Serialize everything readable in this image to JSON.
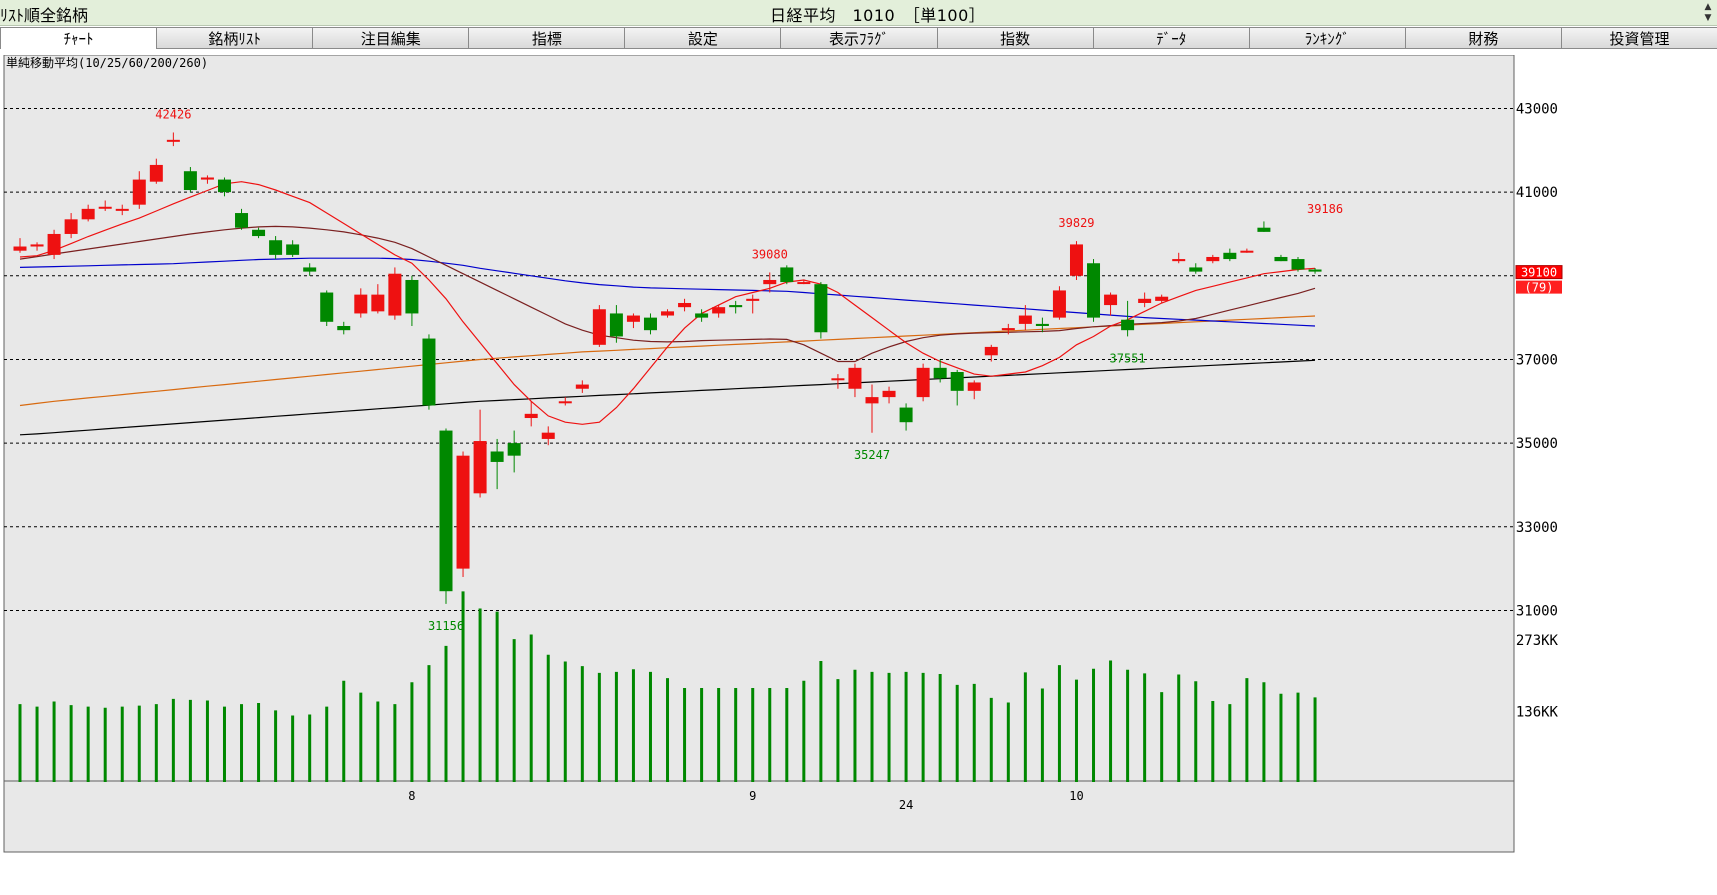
{
  "header": {
    "list_title": "ﾘｽﾄ順全銘柄",
    "stock_title": "日経平均　1010　［単100］",
    "scroll_up_icon": "triangle-up-icon",
    "scroll_down_icon": "triangle-down-icon"
  },
  "tabs": [
    {
      "label": "ﾁｬｰﾄ",
      "active": true
    },
    {
      "label": "銘柄ﾘｽﾄ"
    },
    {
      "label": "注目編集"
    },
    {
      "label": "指標"
    },
    {
      "label": "設定"
    },
    {
      "label": "表示ﾌﾗｸﾞ"
    },
    {
      "label": "指数"
    },
    {
      "label": "ﾃﾞｰﾀ"
    },
    {
      "label": "ﾗﾝｷﾝｸﾞ"
    },
    {
      "label": "財務"
    },
    {
      "label": "投資管理"
    }
  ],
  "colors": {
    "up": "#ee1111",
    "down": "#008800",
    "volume": "#008800",
    "ma10": "#ee1111",
    "ma25": "#7a2020",
    "ma60": "#0000cc",
    "ma200": "#d86a10",
    "ma260": "#000000",
    "background": "#e8e8e8",
    "grid": "#000000"
  },
  "chart_data": {
    "type": "candlestick",
    "indicator_label": "単純移動平均(10/25/60/200/260)",
    "y_ticks": [
      31000,
      33000,
      35000,
      37000,
      39000,
      41000,
      43000
    ],
    "y_tick_labels": [
      "31000",
      "33000",
      "35000",
      "37000",
      "",
      "41000",
      "43000"
    ],
    "ylim": [
      30700,
      43800
    ],
    "x_labels": [
      {
        "index": 23,
        "text": "8"
      },
      {
        "index": 43,
        "text": "9"
      },
      {
        "index": 52,
        "text": "24"
      },
      {
        "index": 62,
        "text": "10"
      }
    ],
    "last_price_label": "39100",
    "last_change_label": "(79)",
    "candles": [
      [
        39600,
        39900,
        39550,
        39700
      ],
      [
        39700,
        39800,
        39600,
        39750
      ],
      [
        39500,
        40100,
        39400,
        40000
      ],
      [
        40000,
        40500,
        39900,
        40350
      ],
      [
        40350,
        40700,
        40300,
        40600
      ],
      [
        40650,
        40800,
        40550,
        40650
      ],
      [
        40600,
        40700,
        40450,
        40600
      ],
      [
        40700,
        41500,
        40600,
        41300
      ],
      [
        41250,
        41800,
        41200,
        41650
      ],
      [
        42250,
        42426,
        42100,
        42250
      ],
      [
        41500,
        41600,
        41000,
        41050
      ],
      [
        41300,
        41400,
        41200,
        41350
      ],
      [
        41300,
        41350,
        40900,
        41000
      ],
      [
        40500,
        40600,
        40100,
        40150
      ],
      [
        40100,
        40150,
        39900,
        39950
      ],
      [
        39850,
        39950,
        39400,
        39500
      ],
      [
        39750,
        39850,
        39450,
        39500
      ],
      [
        39200,
        39300,
        39000,
        39100
      ],
      [
        38600,
        38650,
        37800,
        37900
      ],
      [
        37800,
        37900,
        37600,
        37700
      ],
      [
        38100,
        38700,
        38000,
        38550
      ],
      [
        38150,
        38800,
        38100,
        38550
      ],
      [
        38050,
        39200,
        37950,
        39050
      ],
      [
        38900,
        39000,
        37800,
        38100
      ],
      [
        37500,
        37600,
        35800,
        35900
      ],
      [
        35300,
        35350,
        31156,
        31460
      ],
      [
        32000,
        34800,
        31800,
        34700
      ],
      [
        33800,
        35800,
        33700,
        35050
      ],
      [
        34800,
        35100,
        33900,
        34550
      ],
      [
        35000,
        35300,
        34300,
        34700
      ],
      [
        35600,
        36000,
        35400,
        35700
      ],
      [
        35100,
        35400,
        34950,
        35250
      ],
      [
        36000,
        36100,
        35900,
        36000
      ],
      [
        36300,
        36500,
        36200,
        36400
      ],
      [
        37350,
        38300,
        37300,
        38200
      ],
      [
        38100,
        38300,
        37400,
        37550
      ],
      [
        37900,
        38100,
        37750,
        38050
      ],
      [
        38000,
        38100,
        37600,
        37700
      ],
      [
        38050,
        38200,
        38000,
        38150
      ],
      [
        38250,
        38450,
        38150,
        38350
      ],
      [
        38100,
        38200,
        37900,
        38000
      ],
      [
        38100,
        38300,
        38000,
        38250
      ],
      [
        38300,
        38400,
        38100,
        38250
      ],
      [
        38400,
        38550,
        38100,
        38450
      ],
      [
        38800,
        39080,
        38600,
        38900
      ],
      [
        39200,
        39250,
        38800,
        38850
      ],
      [
        38850,
        38900,
        38800,
        38850
      ],
      [
        38800,
        38850,
        37500,
        37650
      ],
      [
        36550,
        36650,
        36300,
        36550
      ],
      [
        36300,
        36900,
        36100,
        36800
      ],
      [
        35950,
        36400,
        35247,
        36100
      ],
      [
        36100,
        36350,
        35950,
        36250
      ],
      [
        35850,
        35950,
        35300,
        35500
      ],
      [
        36100,
        36900,
        36000,
        36800
      ],
      [
        36800,
        37000,
        36450,
        36550
      ],
      [
        36700,
        36750,
        35900,
        36250
      ],
      [
        36250,
        36500,
        36050,
        36450
      ],
      [
        37100,
        37350,
        36950,
        37300
      ],
      [
        37700,
        37850,
        37600,
        37750
      ],
      [
        37850,
        38300,
        37700,
        38050
      ],
      [
        37850,
        38000,
        37650,
        37800
      ],
      [
        38000,
        38750,
        37950,
        38650
      ],
      [
        39000,
        39829,
        38900,
        39750
      ],
      [
        39300,
        39400,
        37900,
        38000
      ],
      [
        38300,
        38600,
        38050,
        38550
      ],
      [
        37950,
        38400,
        37551,
        37700
      ],
      [
        38350,
        38600,
        38250,
        38450
      ],
      [
        38400,
        38550,
        38350,
        38500
      ],
      [
        39350,
        39550,
        39300,
        39400
      ],
      [
        39200,
        39300,
        39050,
        39100
      ],
      [
        39350,
        39500,
        39300,
        39450
      ],
      [
        39550,
        39650,
        39350,
        39400
      ],
      [
        39600,
        39650,
        39550,
        39600
      ],
      [
        40150,
        40300,
        40050,
        40050
      ],
      [
        39450,
        39500,
        39350,
        39350
      ],
      [
        39400,
        39450,
        39100,
        39150
      ],
      [
        39150,
        39186,
        39050,
        39100
      ]
    ],
    "high_annotations": [
      {
        "index": 9,
        "text": "42426"
      },
      {
        "index": 44,
        "text": "39080"
      },
      {
        "index": 62,
        "text": "39829"
      },
      {
        "index": 76,
        "text": "39186"
      }
    ],
    "low_annotations": [
      {
        "index": 25,
        "text": "31156"
      },
      {
        "index": 50,
        "text": "35247"
      },
      {
        "index": 65,
        "text": "37551"
      }
    ],
    "ma10": [
      39450,
      39480,
      39610,
      39770,
      39940,
      40090,
      40240,
      40380,
      40550,
      40720,
      40880,
      41040,
      41200,
      41250,
      41180,
      41050,
      40900,
      40750,
      40500,
      40250,
      40000,
      39750,
      39500,
      39300,
      38900,
      38450,
      37900,
      37400,
      36900,
      36400,
      36000,
      35650,
      35500,
      35450,
      35500,
      35850,
      36300,
      36800,
      37300,
      37750,
      38100,
      38300,
      38500,
      38600,
      38700,
      38850,
      38900,
      38800,
      38600,
      38300,
      38000,
      37700,
      37400,
      37150,
      36950,
      36800,
      36650,
      36600,
      36650,
      36700,
      36850,
      37050,
      37350,
      37550,
      37800,
      37950,
      38150,
      38350,
      38500,
      38650,
      38750,
      38850,
      38950,
      39050,
      39100,
      39150,
      39180
    ],
    "ma25": [
      39400,
      39460,
      39520,
      39580,
      39640,
      39700,
      39760,
      39820,
      39880,
      39940,
      40000,
      40050,
      40100,
      40140,
      40170,
      40180,
      40170,
      40140,
      40100,
      40050,
      39980,
      39900,
      39800,
      39650,
      39450,
      39250,
      39050,
      38850,
      38650,
      38450,
      38250,
      38050,
      37850,
      37700,
      37580,
      37520,
      37460,
      37430,
      37420,
      37430,
      37450,
      37460,
      37470,
      37480,
      37490,
      37480,
      37350,
      37150,
      36950,
      36950,
      37150,
      37300,
      37430,
      37520,
      37580,
      37610,
      37630,
      37640,
      37650,
      37660,
      37670,
      37690,
      37740,
      37780,
      37810,
      37840,
      37860,
      37880,
      37920,
      37980,
      38080,
      38180,
      38280,
      38380,
      38480,
      38580,
      38700
    ],
    "ma60": [
      39200,
      39210,
      39220,
      39230,
      39240,
      39250,
      39260,
      39270,
      39280,
      39290,
      39310,
      39330,
      39350,
      39370,
      39390,
      39400,
      39410,
      39420,
      39420,
      39420,
      39420,
      39420,
      39410,
      39390,
      39350,
      39300,
      39250,
      39180,
      39120,
      39060,
      39000,
      38940,
      38880,
      38830,
      38790,
      38760,
      38730,
      38710,
      38700,
      38690,
      38680,
      38670,
      38660,
      38650,
      38640,
      38630,
      38600,
      38570,
      38540,
      38510,
      38480,
      38450,
      38420,
      38390,
      38360,
      38330,
      38300,
      38270,
      38240,
      38210,
      38180,
      38150,
      38120,
      38090,
      38060,
      38030,
      38000,
      37980,
      37960,
      37940,
      37920,
      37900,
      37880,
      37860,
      37840,
      37820,
      37800
    ],
    "ma200": [
      35900,
      35950,
      36000,
      36040,
      36080,
      36120,
      36160,
      36200,
      36240,
      36280,
      36320,
      36360,
      36400,
      36440,
      36480,
      36520,
      36560,
      36600,
      36640,
      36680,
      36720,
      36760,
      36800,
      36840,
      36880,
      36920,
      36960,
      37000,
      37030,
      37060,
      37090,
      37120,
      37150,
      37180,
      37200,
      37220,
      37240,
      37260,
      37280,
      37300,
      37320,
      37340,
      37360,
      37380,
      37400,
      37420,
      37440,
      37460,
      37480,
      37500,
      37520,
      37540,
      37560,
      37580,
      37600,
      37620,
      37640,
      37660,
      37680,
      37700,
      37720,
      37740,
      37760,
      37780,
      37800,
      37820,
      37840,
      37860,
      37880,
      37900,
      37920,
      37940,
      37960,
      37980,
      38000,
      38020,
      38040
    ],
    "ma260": [
      35200,
      35220,
      35250,
      35280,
      35310,
      35340,
      35370,
      35400,
      35430,
      35460,
      35490,
      35520,
      35550,
      35580,
      35610,
      35640,
      35670,
      35700,
      35730,
      35760,
      35790,
      35820,
      35850,
      35880,
      35910,
      35940,
      35970,
      36000,
      36020,
      36040,
      36060,
      36080,
      36100,
      36120,
      36140,
      36160,
      36180,
      36200,
      36220,
      36240,
      36260,
      36280,
      36300,
      36320,
      36340,
      36360,
      36380,
      36400,
      36420,
      36440,
      36460,
      36480,
      36500,
      36520,
      36540,
      36560,
      36580,
      36600,
      36620,
      36640,
      36660,
      36680,
      36700,
      36720,
      36740,
      36760,
      36780,
      36800,
      36820,
      36840,
      36860,
      36880,
      36900,
      36920,
      36940,
      36960,
      36980
    ],
    "volume": {
      "ticks": [
        136,
        273
      ],
      "tick_labels": [
        "136KK",
        "273KK"
      ],
      "max": 360,
      "values": [
        150,
        145,
        155,
        148,
        145,
        143,
        145,
        147,
        150,
        160,
        158,
        157,
        145,
        150,
        152,
        138,
        128,
        130,
        145,
        195,
        172,
        155,
        150,
        192,
        225,
        262,
        367,
        334,
        328,
        275,
        284,
        245,
        232,
        223,
        210,
        212,
        217,
        212,
        200,
        181,
        181,
        181,
        181,
        181,
        181,
        181,
        195,
        233,
        198,
        216,
        212,
        210,
        212,
        210,
        208,
        187,
        189,
        162,
        153,
        211,
        180,
        225,
        197,
        218,
        234,
        216,
        209,
        173,
        207,
        194,
        156,
        150,
        200,
        192,
        170,
        172,
        163
      ]
    }
  }
}
